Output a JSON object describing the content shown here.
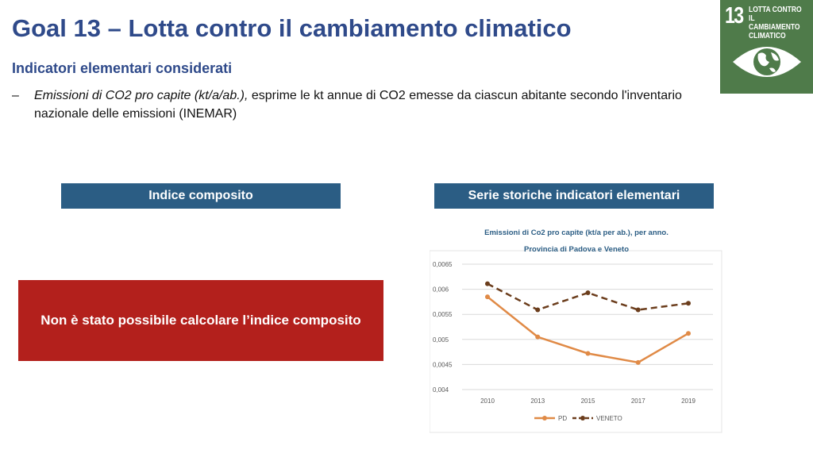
{
  "title": "Goal 13 – Lotta contro il cambiamento climatico",
  "subtitle": "Indicatori elementari considerati",
  "bullet": {
    "dash": "–",
    "italic": "Emissioni di CO2 pro capite (kt/a/ab.),",
    "text": " esprime le kt annue di CO2 emesse da ciascun abitante secondo l'inventario nazionale delle emissioni (INEMAR)"
  },
  "logo": {
    "number": "13",
    "text": "LOTTA CONTRO\nIL CAMBIAMENTO\nCLIMATICO",
    "color": "#4f7b4a"
  },
  "left_header": "Indice composito",
  "right_header": "Serie storiche indicatori elementari",
  "notice": "Non è stato possibile calcolare l’indice composito",
  "chart_data": {
    "type": "line",
    "title": "Emissioni di Co2 pro capite (kt/a per ab.), per anno.",
    "subtitle": "Provincia di Padova e Veneto",
    "categories": [
      "2010",
      "2013",
      "2015",
      "2017",
      "2019"
    ],
    "ylim": [
      0.004,
      0.0065
    ],
    "yticks": [
      "0,004",
      "0,0045",
      "0,005",
      "0,0055",
      "0,006",
      "0,0065"
    ],
    "grid": true,
    "legend": "bottom",
    "series": [
      {
        "name": "PD",
        "values": [
          0.00585,
          0.00505,
          0.00472,
          0.00454,
          0.00512
        ],
        "color": "#e08a46",
        "dash": false
      },
      {
        "name": "VENETO",
        "values": [
          0.00611,
          0.00559,
          0.00593,
          0.00559,
          0.00572
        ],
        "color": "#6b3d1c",
        "dash": true
      }
    ]
  }
}
